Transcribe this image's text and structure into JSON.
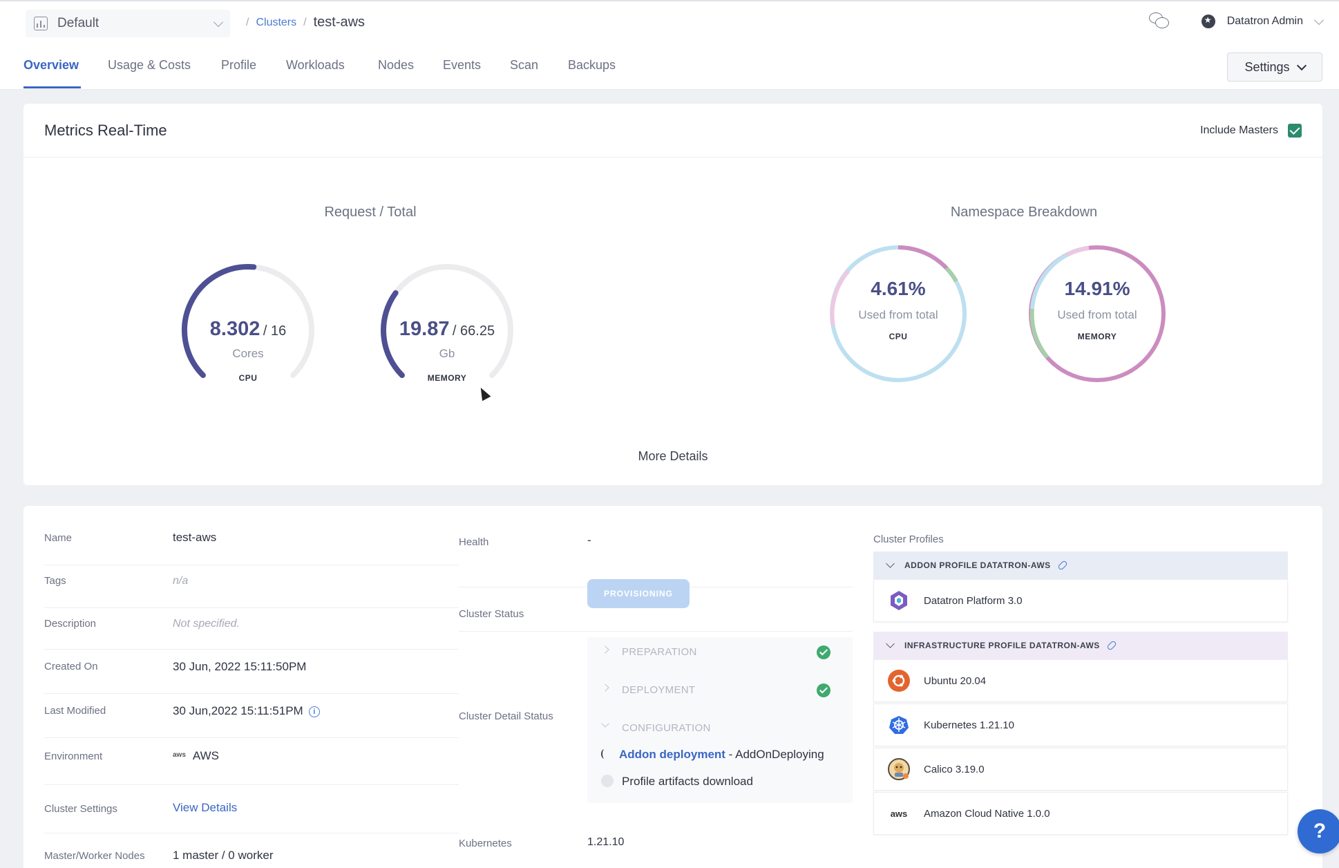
{
  "topbar": {
    "project": "Default",
    "breadcrumb_root": "Clusters",
    "breadcrumb_current": "test-aws",
    "user_name": "Datatron Admin"
  },
  "tabs": [
    "Overview",
    "Usage & Costs",
    "Profile",
    "Workloads",
    "Nodes",
    "Events",
    "Scan",
    "Backups"
  ],
  "active_tab": "Overview",
  "settings_label": "Settings",
  "metrics": {
    "title": "Metrics Real-Time",
    "include_masters_label": "Include Masters",
    "include_masters_checked": true,
    "request_total_title": "Request / Total",
    "namespace_title": "Namespace Breakdown",
    "cpu": {
      "value": "8.302",
      "total": "/ 16",
      "unit": "Cores",
      "label": "CPU",
      "fraction": 0.519
    },
    "memory": {
      "value": "19.87",
      "total": "/ 66.25",
      "unit": "Gb",
      "label": "MEMORY",
      "fraction": 0.3
    },
    "ns_cpu": {
      "pct": "4.61%",
      "sub": "Used from total",
      "label": "CPU"
    },
    "ns_memory": {
      "pct": "14.91%",
      "sub": "Used from total",
      "label": "MEMORY"
    },
    "more_details": "More Details",
    "colors": {
      "gauge": "#4f4f94",
      "track": "#ececef",
      "light_blue": "#bde0f0",
      "pink": "#cc8cc0",
      "light_pink": "#ecc9e2",
      "green": "#a7cfa9"
    }
  },
  "details": {
    "name_label": "Name",
    "name": "test-aws",
    "tags_label": "Tags",
    "tags": "n/a",
    "description_label": "Description",
    "description": "Not specified.",
    "created_label": "Created On",
    "created": "30 Jun, 2022 15:11:50PM",
    "modified_label": "Last Modified",
    "modified": "30 Jun,2022 15:11:51PM",
    "environment_label": "Environment",
    "environment_logo": "aws",
    "environment": "AWS",
    "cluster_settings_label": "Cluster Settings",
    "cluster_settings": "View Details",
    "nodes_label": "Master/Worker Nodes",
    "nodes": "1 master / 0 worker",
    "health_label": "Health",
    "health": "-",
    "status_label": "Cluster Status",
    "status": "PROVISIONING",
    "detail_status_label": "Cluster Detail Status",
    "steps": [
      "PREPARATION",
      "DEPLOYMENT",
      "CONFIGURATION"
    ],
    "addon_link": "Addon deployment",
    "addon_state": " - AddOnDeploying",
    "artifacts": "Profile artifacts download",
    "kubernetes_label": "Kubernetes",
    "kubernetes": "1.21.10"
  },
  "profiles": {
    "title": "Cluster Profiles",
    "addon_header": "ADDON PROFILE DATATRON-AWS",
    "addon_items": [
      "Datatron Platform 3.0"
    ],
    "infra_header": "INFRASTRUCTURE PROFILE DATATRON-AWS",
    "infra_items": [
      "Ubuntu 20.04",
      "Kubernetes 1.21.10",
      "Calico 3.19.0",
      "Amazon Cloud Native 1.0.0"
    ],
    "aws_logo": "aws"
  },
  "help_label": "?"
}
